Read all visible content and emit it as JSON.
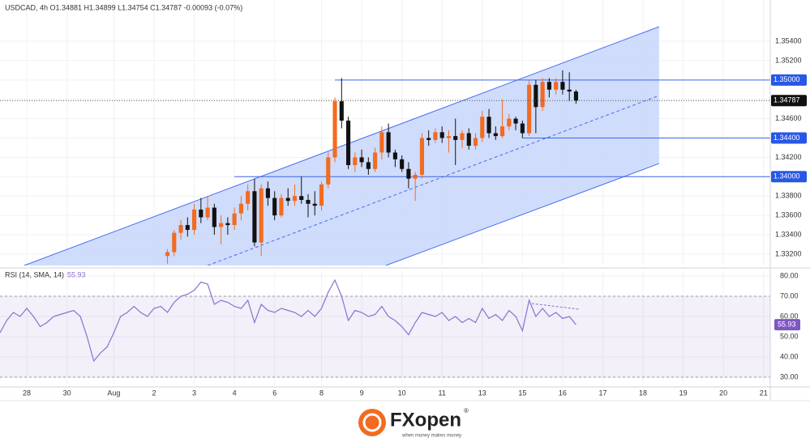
{
  "chart_data": {
    "type": "candlestick",
    "header": "USDCAD, 4h  O1.34881  H1.34899  L1.34754  C1.34787  -0.00093 (-0.07%)",
    "up_color": "#f26b21",
    "down_color": "#111111",
    "x": [
      25,
      26,
      27,
      28,
      29,
      30,
      31,
      32,
      33,
      34,
      35,
      36,
      37,
      38,
      39,
      40,
      41,
      42,
      43,
      44,
      45,
      46,
      47,
      48,
      49,
      50,
      51,
      52,
      53,
      54,
      55,
      56,
      57,
      58,
      59,
      60,
      61,
      62,
      63,
      64,
      65,
      66,
      67,
      68,
      69,
      70,
      71,
      72,
      73,
      74,
      75,
      76,
      77,
      78,
      79,
      80,
      81,
      82,
      83,
      84,
      85,
      86
    ],
    "open": [
      1.3318,
      1.3322,
      1.3342,
      1.335,
      1.3345,
      1.3366,
      1.3358,
      1.3368,
      1.3348,
      1.3352,
      1.335,
      1.3362,
      1.3372,
      1.3385,
      1.3332,
      1.3388,
      1.3378,
      1.336,
      1.3378,
      1.3375,
      1.338,
      1.3376,
      1.3372,
      1.337,
      1.3392,
      1.342,
      1.3478,
      1.3458,
      1.3412,
      1.342,
      1.3415,
      1.3408,
      1.3425,
      1.3446,
      1.3425,
      1.3418,
      1.3408,
      1.3398,
      1.3402,
      1.344,
      1.3438,
      1.3446,
      1.344,
      1.3442,
      1.3438,
      1.3445,
      1.3432,
      1.344,
      1.3462,
      1.3445,
      1.3442,
      1.3452,
      1.346,
      1.3455,
      1.3445,
      1.3495,
      1.3472,
      1.3498,
      1.349,
      1.3498,
      1.349,
      1.34881
    ],
    "high": [
      1.3325,
      1.3345,
      1.3355,
      1.3358,
      1.3372,
      1.3378,
      1.338,
      1.3372,
      1.336,
      1.3358,
      1.3368,
      1.338,
      1.3392,
      1.3398,
      1.3392,
      1.3395,
      1.3385,
      1.3382,
      1.3388,
      1.3392,
      1.34,
      1.3382,
      1.3385,
      1.3395,
      1.3425,
      1.3482,
      1.3502,
      1.3462,
      1.3425,
      1.3428,
      1.342,
      1.343,
      1.3452,
      1.3455,
      1.3428,
      1.3422,
      1.3415,
      1.3405,
      1.3445,
      1.3448,
      1.345,
      1.3452,
      1.3448,
      1.346,
      1.3448,
      1.345,
      1.3445,
      1.3468,
      1.347,
      1.3452,
      1.348,
      1.3465,
      1.3462,
      1.3458,
      1.35,
      1.35,
      1.3502,
      1.3502,
      1.3502,
      1.351,
      1.3508,
      1.34899
    ],
    "low": [
      1.331,
      1.3318,
      1.3335,
      1.3338,
      1.334,
      1.3352,
      1.3355,
      1.334,
      1.333,
      1.334,
      1.3345,
      1.3355,
      1.3365,
      1.3328,
      1.3318,
      1.337,
      1.3355,
      1.3358,
      1.337,
      1.337,
      1.3372,
      1.3358,
      1.336,
      1.3365,
      1.3388,
      1.3415,
      1.345,
      1.3408,
      1.3405,
      1.341,
      1.3402,
      1.3405,
      1.3418,
      1.342,
      1.341,
      1.3405,
      1.3388,
      1.3375,
      1.3398,
      1.3432,
      1.3435,
      1.3435,
      1.3425,
      1.3412,
      1.343,
      1.3428,
      1.3428,
      1.3436,
      1.344,
      1.3438,
      1.344,
      1.3448,
      1.3448,
      1.344,
      1.3442,
      1.3445,
      1.3468,
      1.3482,
      1.3485,
      1.3485,
      1.3478,
      1.34754
    ],
    "close": [
      1.3322,
      1.3342,
      1.335,
      1.3345,
      1.3366,
      1.3358,
      1.3368,
      1.3348,
      1.3352,
      1.335,
      1.3362,
      1.3372,
      1.3385,
      1.3332,
      1.3388,
      1.3378,
      1.336,
      1.3378,
      1.3375,
      1.338,
      1.3376,
      1.3372,
      1.337,
      1.3392,
      1.342,
      1.3478,
      1.3458,
      1.3412,
      1.342,
      1.3415,
      1.3408,
      1.3425,
      1.3446,
      1.3425,
      1.3418,
      1.3408,
      1.3398,
      1.3402,
      1.344,
      1.3438,
      1.3446,
      1.344,
      1.3442,
      1.3438,
      1.3445,
      1.3432,
      1.344,
      1.3462,
      1.3445,
      1.3442,
      1.3452,
      1.346,
      1.3455,
      1.3445,
      1.3495,
      1.3472,
      1.3498,
      1.349,
      1.3498,
      1.349,
      1.34881,
      1.34787
    ],
    "xlim": [
      0,
      115
    ],
    "ylim": [
      1.33082,
      1.35827
    ],
    "yticks": [
      {
        "value": 1.332,
        "label": "1.33200"
      },
      {
        "value": 1.334,
        "label": "1.33400"
      },
      {
        "value": 1.336,
        "label": "1.33600"
      },
      {
        "value": 1.338,
        "label": "1.33800"
      },
      {
        "value": 1.34,
        "label": "1.34000"
      },
      {
        "value": 1.342,
        "label": "1.34200"
      },
      {
        "value": 1.344,
        "label": "1.34400"
      },
      {
        "value": 1.346,
        "label": "1.34600"
      },
      {
        "value": 1.348,
        "label": "1.34800"
      },
      {
        "value": 1.35,
        "label": "1.35000"
      },
      {
        "value": 1.352,
        "label": "1.35200"
      },
      {
        "value": 1.354,
        "label": "1.35400"
      }
    ],
    "xticks": [
      {
        "value": 4,
        "label": "28"
      },
      {
        "value": 10,
        "label": "30"
      },
      {
        "value": 17,
        "label": "Aug"
      },
      {
        "value": 23,
        "label": "2"
      },
      {
        "value": 29,
        "label": "3"
      },
      {
        "value": 35,
        "label": "4"
      },
      {
        "value": 41,
        "label": "6"
      },
      {
        "value": 48,
        "label": "8"
      },
      {
        "value": 54,
        "label": "9"
      },
      {
        "value": 60,
        "label": "10"
      },
      {
        "value": 66,
        "label": "11"
      },
      {
        "value": 72,
        "label": "13"
      },
      {
        "value": 78,
        "label": "15"
      },
      {
        "value": 84,
        "label": "16"
      },
      {
        "value": 90,
        "label": "17"
      },
      {
        "value": 96,
        "label": "18"
      },
      {
        "value": 102,
        "label": "19"
      },
      {
        "value": 108,
        "label": "20"
      },
      {
        "value": 114,
        "label": "21"
      }
    ],
    "levels": [
      {
        "value": 1.35,
        "label": "1.35000",
        "x_start": 50
      },
      {
        "value": 1.344,
        "label": "1.34400",
        "x_start": 78
      },
      {
        "value": 1.34,
        "label": "1.34000",
        "x_start": 35
      }
    ],
    "last_price": {
      "value": 1.34787,
      "label": "1.34787"
    },
    "channel": {
      "color": "#4a6cf2",
      "fill": "#cad8fb",
      "upper": {
        "x": [
          3.6,
          98.4
        ],
        "y": [
          1.33082,
          1.35551
        ]
      },
      "lower": {
        "x": [
          57.6,
          98.4
        ],
        "y": [
          1.33082,
          1.34136
        ]
      },
      "middle": {
        "x": [
          31,
          98.4
        ],
        "y": [
          1.33082,
          1.34839
        ]
      }
    },
    "rsi": {
      "title": "RSI (14, SMA, 14)",
      "last_label": "55.93",
      "color": "#8e6fd1",
      "x": [
        0,
        1,
        2,
        3,
        4,
        5,
        6,
        7,
        8,
        9,
        10,
        11,
        12,
        13,
        14,
        15,
        16,
        17,
        18,
        19,
        20,
        21,
        22,
        23,
        24,
        25,
        26,
        27,
        28,
        29,
        30,
        31,
        32,
        33,
        34,
        35,
        36,
        37,
        38,
        39,
        40,
        41,
        42,
        43,
        44,
        45,
        46,
        47,
        48,
        49,
        50,
        51,
        52,
        53,
        54,
        55,
        56,
        57,
        58,
        59,
        60,
        61,
        62,
        63,
        64,
        65,
        66,
        67,
        68,
        69,
        70,
        71,
        72,
        73,
        74,
        75,
        76,
        77,
        78,
        79,
        80,
        81,
        82,
        83,
        84,
        85,
        86
      ],
      "values": [
        52,
        58,
        62,
        60,
        64,
        60,
        55,
        57,
        60,
        61,
        62,
        63,
        60,
        50,
        38,
        42,
        45,
        52,
        60,
        62,
        65,
        62,
        60,
        64,
        65,
        62,
        67,
        70,
        71,
        73,
        77,
        76,
        66,
        68,
        67,
        65,
        64,
        68,
        57,
        66,
        63,
        62,
        64,
        63,
        62,
        60,
        63,
        60,
        64,
        72,
        78,
        70,
        58,
        63,
        62,
        60,
        61,
        65,
        60,
        58,
        55,
        51,
        57,
        62,
        61,
        60,
        62,
        58,
        60,
        57,
        59,
        57,
        64,
        59,
        61,
        58,
        63,
        60,
        53,
        68,
        60,
        64,
        60,
        62,
        59,
        60,
        55.93
      ],
      "ylim": [
        26.4,
        82.4
      ],
      "yticks": [
        {
          "value": 30,
          "label": "30.00"
        },
        {
          "value": 40,
          "label": "40.00"
        },
        {
          "value": 50,
          "label": "50.00"
        },
        {
          "value": 60,
          "label": "60.00"
        },
        {
          "value": 70,
          "label": "70.00"
        },
        {
          "value": 80,
          "label": "80.00"
        }
      ],
      "band": [
        30,
        70
      ],
      "divergence": {
        "x": [
          79.4,
          86.4
        ],
        "y": [
          66.4,
          63.6
        ]
      }
    },
    "logo": {
      "name": "FXopen",
      "mark": "®",
      "tagline": "when money makes money"
    }
  }
}
